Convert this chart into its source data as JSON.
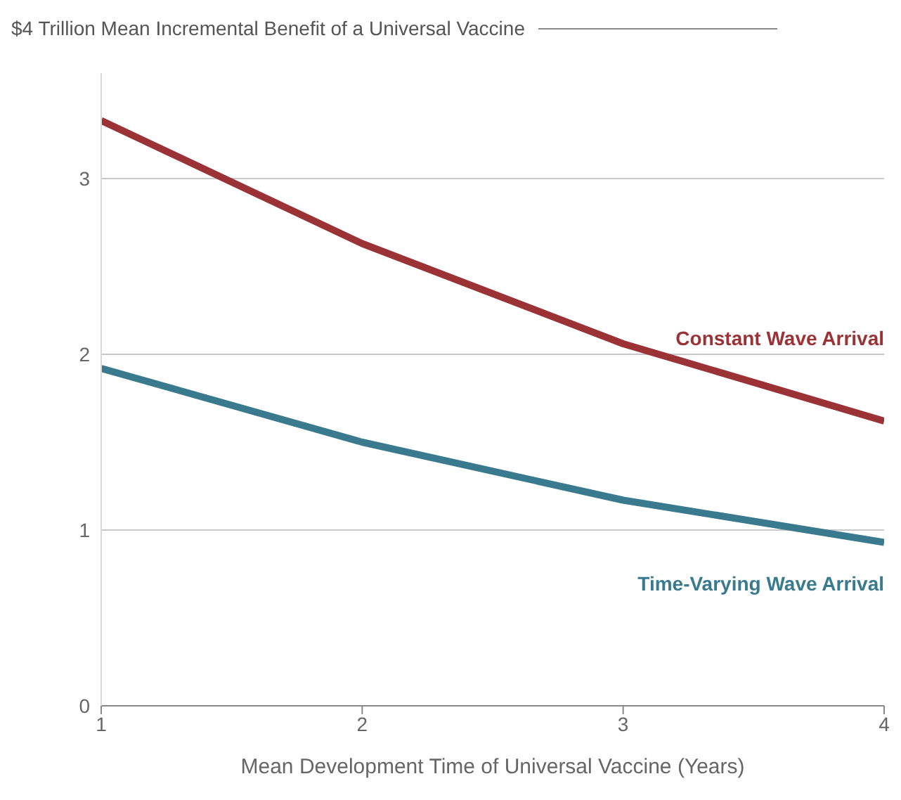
{
  "chart_data": {
    "type": "line",
    "title": "$4 Trillion Mean Incremental Benefit of a Universal Vaccine",
    "xlabel": "Mean Development Time of Universal Vaccine (Years)",
    "x": [
      1,
      2,
      3,
      4
    ],
    "xlim": [
      1,
      4
    ],
    "xticks": [
      1,
      2,
      3,
      4
    ],
    "ylim": [
      0,
      3.6
    ],
    "yticks": [
      0,
      1,
      2,
      3
    ],
    "grid": "y",
    "legend": false,
    "marker": "none",
    "line_style": "solid",
    "series": [
      {
        "name": "Constant Wave Arrival",
        "color": "#9b3236",
        "values": [
          3.33,
          2.63,
          2.06,
          1.62
        ]
      },
      {
        "name": "Time-Varying Wave Arrival",
        "color": "#3a7a8f",
        "values": [
          1.92,
          1.5,
          1.17,
          0.93
        ]
      }
    ]
  }
}
